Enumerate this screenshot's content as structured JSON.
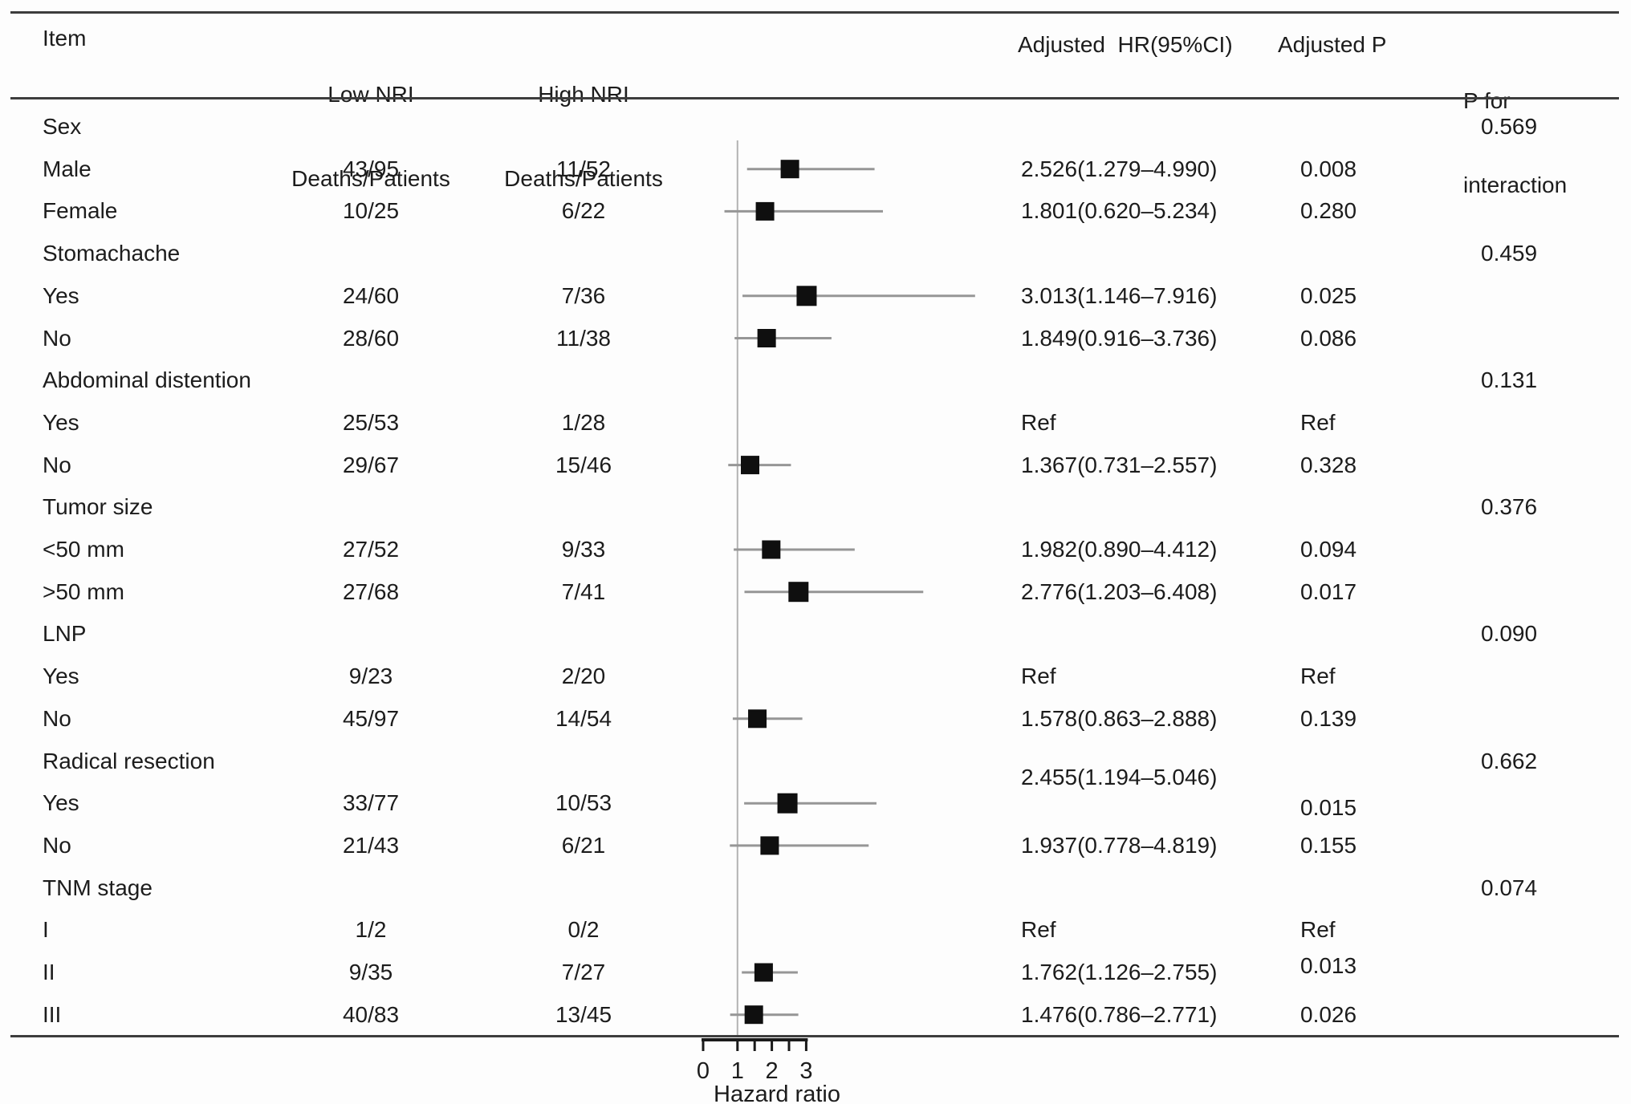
{
  "header": {
    "item": "Item",
    "low_line1": "Low NRI",
    "low_line2": "Deaths/Patients",
    "high_line1": "High NRI",
    "high_line2": "Deaths/Patients",
    "hr": "Adjusted  HR(95%CI)",
    "p": "Adjusted P",
    "pint_line1": "P for",
    "pint_line2": "interaction"
  },
  "colors": {
    "text": "#1c1c1c",
    "rule": "#3d3d3d",
    "whisker": "#969696",
    "refline": "#b3b3b3",
    "square": "#0f0f0f",
    "axis": "#1a1a1a"
  },
  "chart_data": {
    "type": "forest",
    "title": "",
    "xlabel": "Hazard ratio",
    "xlim": [
      0,
      3.1
    ],
    "axis_ticks": [
      0,
      1,
      2,
      3
    ],
    "axis_minor_ticks": [
      1.5,
      2.5
    ],
    "reference_line": 1,
    "rows": [
      {
        "label": "Sex",
        "section": true,
        "pint": "0.569"
      },
      {
        "label": "Male",
        "low": "43/95",
        "high": "11/52",
        "hr_text": "2.526(1.279–4.990)",
        "p": "0.008",
        "est": 2.526,
        "lo": 1.279,
        "hi": 4.99
      },
      {
        "label": "Female",
        "low": "10/25",
        "high": "6/22",
        "hr_text": "1.801(0.620–5.234)",
        "p": "0.280",
        "est": 1.801,
        "lo": 0.62,
        "hi": 5.234
      },
      {
        "label": "Stomachache",
        "section": true,
        "pint": "0.459"
      },
      {
        "label": "Yes",
        "low": "24/60",
        "high": "7/36",
        "hr_text": "3.013(1.146–7.916)",
        "p": "0.025",
        "est": 3.013,
        "lo": 1.146,
        "hi": 7.916,
        "sq": 25
      },
      {
        "label": "No",
        "low": "28/60",
        "high": "11/38",
        "hr_text": "1.849(0.916–3.736)",
        "p": "0.086",
        "est": 1.849,
        "lo": 0.916,
        "hi": 3.736
      },
      {
        "label": "Abdominal distention",
        "section": true,
        "pint": "0.131"
      },
      {
        "label": "Yes",
        "low": "25/53",
        "high": "1/28",
        "hr_text": "Ref",
        "p": "Ref"
      },
      {
        "label": "No",
        "low": "29/67",
        "high": "15/46",
        "hr_text": "1.367(0.731–2.557)",
        "p": "0.328",
        "est": 1.367,
        "lo": 0.731,
        "hi": 2.557
      },
      {
        "label": "Tumor size",
        "section": true,
        "pint": "0.376"
      },
      {
        "label": "<50 mm",
        "low": "27/52",
        "high": "9/33",
        "hr_text": "1.982(0.890–4.412)",
        "p": "0.094",
        "est": 1.982,
        "lo": 0.89,
        "hi": 4.412
      },
      {
        "label": ">50 mm",
        "low": "27/68",
        "high": "7/41",
        "hr_text": "2.776(1.203–6.408)",
        "p": "0.017",
        "est": 2.776,
        "lo": 1.203,
        "hi": 6.408,
        "sq": 25
      },
      {
        "label": "LNP",
        "section": true,
        "pint": "0.090"
      },
      {
        "label": "Yes",
        "low": "9/23",
        "high": "2/20",
        "hr_text": "Ref",
        "p": "Ref"
      },
      {
        "label": "No",
        "low": "45/97",
        "high": "14/54",
        "hr_text": "1.578(0.863–2.888)",
        "p": "0.139",
        "est": 1.578,
        "lo": 0.863,
        "hi": 2.888
      },
      {
        "label": "Radical resection",
        "section": true,
        "pint": "0.662"
      },
      {
        "label": "Yes",
        "low": "33/77",
        "high": "10/53",
        "hr_text": "2.455(1.194–5.046)",
        "p": "0.015",
        "est": 2.455,
        "lo": 1.194,
        "hi": 5.046,
        "sq": 25,
        "hr_dy": -32,
        "p_dy": 6
      },
      {
        "label": "No",
        "low": "21/43",
        "high": "6/21",
        "hr_text": "1.937(0.778–4.819)",
        "p": "0.155",
        "est": 1.937,
        "lo": 0.778,
        "hi": 4.819
      },
      {
        "label": "TNM stage",
        "section": true,
        "pint": "0.074"
      },
      {
        "label": "I",
        "low": "1/2",
        "high": "0/2",
        "hr_text": "Ref",
        "p": "Ref"
      },
      {
        "label": "II",
        "low": "9/35",
        "high": "7/27",
        "hr_text": "1.762(1.126–2.755)",
        "p": "0.013",
        "est": 1.762,
        "lo": 1.126,
        "hi": 2.755,
        "p_dy": -8
      },
      {
        "label": "III",
        "low": "40/83",
        "high": "13/45",
        "hr_text": "1.476(0.786–2.771)",
        "p": "0.026",
        "est": 1.476,
        "lo": 0.786,
        "hi": 2.771
      }
    ]
  }
}
